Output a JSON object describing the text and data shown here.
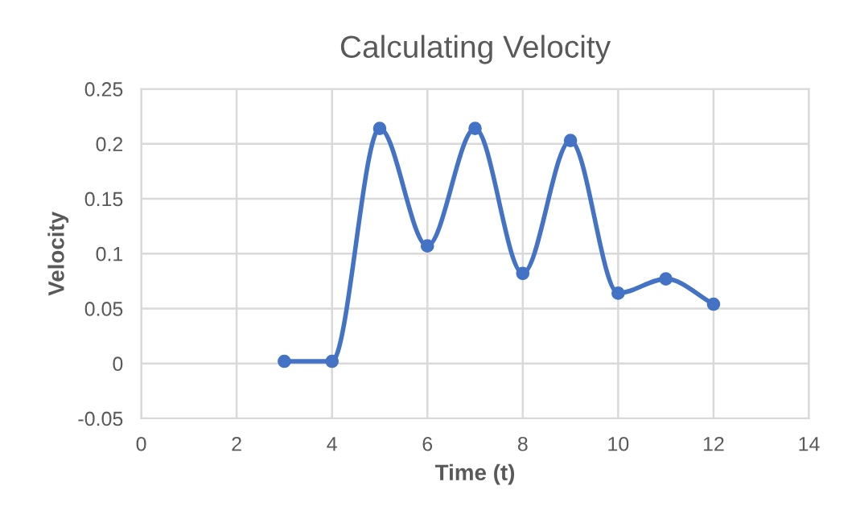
{
  "chart_data": {
    "type": "line",
    "title": "Calculating Velocity",
    "xlabel": "Time (t)",
    "ylabel": "Velocity",
    "x": [
      3,
      4,
      5,
      6,
      7,
      8,
      9,
      10,
      11,
      12
    ],
    "series": [
      {
        "color": "#4472c4",
        "values": [
          0.002,
          0.002,
          0.214,
          0.107,
          0.214,
          0.082,
          0.203,
          0.064,
          0.077,
          0.054
        ]
      }
    ],
    "xlim": [
      0,
      14
    ],
    "xticks": [
      0,
      2,
      4,
      6,
      8,
      10,
      12,
      14
    ],
    "ylim": [
      -0.05,
      0.25
    ],
    "yticks": [
      {
        "value": -0.05,
        "label": "-0.05"
      },
      0,
      0.05,
      0.1,
      0.15,
      0.2,
      0.25
    ],
    "grid": true,
    "marker": "circle",
    "line_style": "solid",
    "legend": false
  }
}
